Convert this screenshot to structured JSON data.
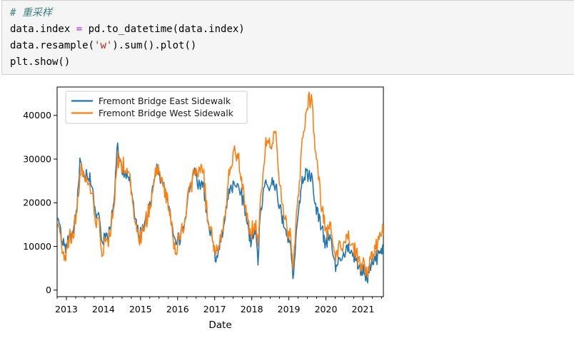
{
  "code_cell": {
    "language": "python",
    "colors": {
      "comment": "#408080",
      "operator": "#AA22FF",
      "string": "#BA2121",
      "plain": "#000000"
    },
    "lines": [
      [
        {
          "text": "# 重采样",
          "type": "comment"
        }
      ],
      [
        {
          "text": "data.index ",
          "type": "plain"
        },
        {
          "text": "=",
          "type": "operator"
        },
        {
          "text": " pd.to_datetime(data.index)",
          "type": "plain"
        }
      ],
      [
        {
          "text": "data.resample(",
          "type": "plain"
        },
        {
          "text": "'w'",
          "type": "string"
        },
        {
          "text": ").sum().plot()",
          "type": "plain"
        }
      ],
      [
        {
          "text": "plt.show()",
          "type": "plain"
        }
      ]
    ]
  },
  "chart_data": {
    "type": "line",
    "title": "",
    "xlabel": "Date",
    "ylabel": "",
    "grid": false,
    "legend_position": "upper left",
    "frequency": "weekly (resampled 'w')",
    "xlim": [
      2012.75,
      2021.55
    ],
    "ylim": [
      -1500,
      46500
    ],
    "x_ticks": [
      2013,
      2014,
      2015,
      2016,
      2017,
      2018,
      2019,
      2020,
      2021
    ],
    "x_minor_tick_step": 0.25,
    "y_ticks": [
      0,
      10000,
      20000,
      30000,
      40000
    ],
    "axis_color": "#000000",
    "legend_border_color": "#cccccc",
    "noise": {
      "seed": 42,
      "shared_east": 1300,
      "shared_west": 1600,
      "indep_east": 800,
      "indep_west": 1000,
      "clamp_min": 600,
      "clamp_max": 45300
    },
    "series": [
      {
        "name": "Fremont Bridge East Sidewalk",
        "color": "#1f77b4",
        "anchors": [
          [
            2012.79,
            16500
          ],
          [
            2012.87,
            12500
          ],
          [
            2012.96,
            10000
          ],
          [
            2013.04,
            11500
          ],
          [
            2013.12,
            12500
          ],
          [
            2013.21,
            14500
          ],
          [
            2013.29,
            19500
          ],
          [
            2013.37,
            29500
          ],
          [
            2013.46,
            26500
          ],
          [
            2013.54,
            26000
          ],
          [
            2013.62,
            26500
          ],
          [
            2013.71,
            22500
          ],
          [
            2013.79,
            18000
          ],
          [
            2013.87,
            17000
          ],
          [
            2013.96,
            10500
          ],
          [
            2014.04,
            12000
          ],
          [
            2014.12,
            11500
          ],
          [
            2014.21,
            16000
          ],
          [
            2014.29,
            21000
          ],
          [
            2014.37,
            33500
          ],
          [
            2014.46,
            29000
          ],
          [
            2014.54,
            27500
          ],
          [
            2014.62,
            26000
          ],
          [
            2014.71,
            24500
          ],
          [
            2014.79,
            20000
          ],
          [
            2014.87,
            15000
          ],
          [
            2014.96,
            12500
          ],
          [
            2015.04,
            13500
          ],
          [
            2015.12,
            16000
          ],
          [
            2015.21,
            17500
          ],
          [
            2015.29,
            21000
          ],
          [
            2015.37,
            26000
          ],
          [
            2015.46,
            28000
          ],
          [
            2015.54,
            26000
          ],
          [
            2015.62,
            24500
          ],
          [
            2015.71,
            21000
          ],
          [
            2015.79,
            18500
          ],
          [
            2015.87,
            13000
          ],
          [
            2015.96,
            10000
          ],
          [
            2016.04,
            11500
          ],
          [
            2016.12,
            13500
          ],
          [
            2016.21,
            16500
          ],
          [
            2016.29,
            22500
          ],
          [
            2016.37,
            23500
          ],
          [
            2016.46,
            28500
          ],
          [
            2016.54,
            24000
          ],
          [
            2016.62,
            24500
          ],
          [
            2016.71,
            23000
          ],
          [
            2016.79,
            17000
          ],
          [
            2016.87,
            13500
          ],
          [
            2016.96,
            10500
          ],
          [
            2017.04,
            7500
          ],
          [
            2017.12,
            10000
          ],
          [
            2017.21,
            13000
          ],
          [
            2017.29,
            16500
          ],
          [
            2017.37,
            22000
          ],
          [
            2017.46,
            24000
          ],
          [
            2017.54,
            24500
          ],
          [
            2017.62,
            23500
          ],
          [
            2017.71,
            22500
          ],
          [
            2017.79,
            19000
          ],
          [
            2017.87,
            16000
          ],
          [
            2017.96,
            11000
          ],
          [
            2018.04,
            13000
          ],
          [
            2018.12,
            13500
          ],
          [
            2018.17,
            5000
          ],
          [
            2018.21,
            15500
          ],
          [
            2018.29,
            19500
          ],
          [
            2018.37,
            25000
          ],
          [
            2018.46,
            24000
          ],
          [
            2018.54,
            24500
          ],
          [
            2018.62,
            24000
          ],
          [
            2018.71,
            21500
          ],
          [
            2018.79,
            18000
          ],
          [
            2018.87,
            14500
          ],
          [
            2018.96,
            11500
          ],
          [
            2019.04,
            11000
          ],
          [
            2019.12,
            2500
          ],
          [
            2019.21,
            14500
          ],
          [
            2019.29,
            20500
          ],
          [
            2019.37,
            25000
          ],
          [
            2019.46,
            27000
          ],
          [
            2019.54,
            26000
          ],
          [
            2019.62,
            25000
          ],
          [
            2019.71,
            20000
          ],
          [
            2019.79,
            17000
          ],
          [
            2019.87,
            14500
          ],
          [
            2019.96,
            11500
          ],
          [
            2020.04,
            11500
          ],
          [
            2020.12,
            13000
          ],
          [
            2020.21,
            7500
          ],
          [
            2020.29,
            5000
          ],
          [
            2020.37,
            7500
          ],
          [
            2020.46,
            8000
          ],
          [
            2020.54,
            9500
          ],
          [
            2020.62,
            9000
          ],
          [
            2020.71,
            8000
          ],
          [
            2020.79,
            7500
          ],
          [
            2020.87,
            5500
          ],
          [
            2020.96,
            4800
          ],
          [
            2021.04,
            4500
          ],
          [
            2021.12,
            3000
          ],
          [
            2021.21,
            5500
          ],
          [
            2021.29,
            6500
          ],
          [
            2021.37,
            7500
          ],
          [
            2021.46,
            8500
          ],
          [
            2021.55,
            9200
          ]
        ]
      },
      {
        "name": "Fremont Bridge West Sidewalk",
        "color": "#ff7f0e",
        "anchors": [
          [
            2012.79,
            14500
          ],
          [
            2012.87,
            11500
          ],
          [
            2012.96,
            7000
          ],
          [
            2013.04,
            11000
          ],
          [
            2013.12,
            12000
          ],
          [
            2013.21,
            13500
          ],
          [
            2013.29,
            18000
          ],
          [
            2013.37,
            27000
          ],
          [
            2013.46,
            27500
          ],
          [
            2013.54,
            25500
          ],
          [
            2013.62,
            25000
          ],
          [
            2013.71,
            21000
          ],
          [
            2013.79,
            16500
          ],
          [
            2013.87,
            16000
          ],
          [
            2013.96,
            7000
          ],
          [
            2014.04,
            11000
          ],
          [
            2014.12,
            10500
          ],
          [
            2014.21,
            15000
          ],
          [
            2014.29,
            20000
          ],
          [
            2014.37,
            31000
          ],
          [
            2014.46,
            28500
          ],
          [
            2014.54,
            29000
          ],
          [
            2014.62,
            26500
          ],
          [
            2014.71,
            25500
          ],
          [
            2014.79,
            19500
          ],
          [
            2014.87,
            14500
          ],
          [
            2014.96,
            11500
          ],
          [
            2015.04,
            13000
          ],
          [
            2015.12,
            15500
          ],
          [
            2015.21,
            17500
          ],
          [
            2015.29,
            20500
          ],
          [
            2015.37,
            26500
          ],
          [
            2015.46,
            27500
          ],
          [
            2015.54,
            26000
          ],
          [
            2015.62,
            24000
          ],
          [
            2015.71,
            21000
          ],
          [
            2015.79,
            18000
          ],
          [
            2015.87,
            12000
          ],
          [
            2015.96,
            7000
          ],
          [
            2016.04,
            11500
          ],
          [
            2016.12,
            13500
          ],
          [
            2016.21,
            16000
          ],
          [
            2016.29,
            23000
          ],
          [
            2016.37,
            23500
          ],
          [
            2016.46,
            29000
          ],
          [
            2016.54,
            27000
          ],
          [
            2016.62,
            27500
          ],
          [
            2016.71,
            25500
          ],
          [
            2016.79,
            17500
          ],
          [
            2016.87,
            14500
          ],
          [
            2016.96,
            10500
          ],
          [
            2017.04,
            9000
          ],
          [
            2017.12,
            10500
          ],
          [
            2017.21,
            13500
          ],
          [
            2017.29,
            17000
          ],
          [
            2017.37,
            26000
          ],
          [
            2017.46,
            29500
          ],
          [
            2017.54,
            33000
          ],
          [
            2017.62,
            31000
          ],
          [
            2017.71,
            26000
          ],
          [
            2017.79,
            21000
          ],
          [
            2017.87,
            17500
          ],
          [
            2017.96,
            12500
          ],
          [
            2018.04,
            14500
          ],
          [
            2018.12,
            15000
          ],
          [
            2018.17,
            9500
          ],
          [
            2018.21,
            18000
          ],
          [
            2018.29,
            24000
          ],
          [
            2018.37,
            33000
          ],
          [
            2018.46,
            36000
          ],
          [
            2018.54,
            31000
          ],
          [
            2018.62,
            37000
          ],
          [
            2018.71,
            29000
          ],
          [
            2018.79,
            22000
          ],
          [
            2018.87,
            17000
          ],
          [
            2018.96,
            13000
          ],
          [
            2019.04,
            14000
          ],
          [
            2019.12,
            5000
          ],
          [
            2019.21,
            18000
          ],
          [
            2019.29,
            26000
          ],
          [
            2019.37,
            35500
          ],
          [
            2019.46,
            39000
          ],
          [
            2019.54,
            44000
          ],
          [
            2019.62,
            42500
          ],
          [
            2019.71,
            33000
          ],
          [
            2019.79,
            26500
          ],
          [
            2019.87,
            20000
          ],
          [
            2019.96,
            15000
          ],
          [
            2020.04,
            13500
          ],
          [
            2020.12,
            15000
          ],
          [
            2020.21,
            10000
          ],
          [
            2020.29,
            8000
          ],
          [
            2020.37,
            11000
          ],
          [
            2020.46,
            10500
          ],
          [
            2020.54,
            12000
          ],
          [
            2020.62,
            11500
          ],
          [
            2020.71,
            10000
          ],
          [
            2020.79,
            9500
          ],
          [
            2020.87,
            7000
          ],
          [
            2020.96,
            6000
          ],
          [
            2021.04,
            6000
          ],
          [
            2021.12,
            4000
          ],
          [
            2021.21,
            7000
          ],
          [
            2021.29,
            8500
          ],
          [
            2021.37,
            10500
          ],
          [
            2021.46,
            11500
          ],
          [
            2021.55,
            13000
          ]
        ]
      }
    ]
  }
}
